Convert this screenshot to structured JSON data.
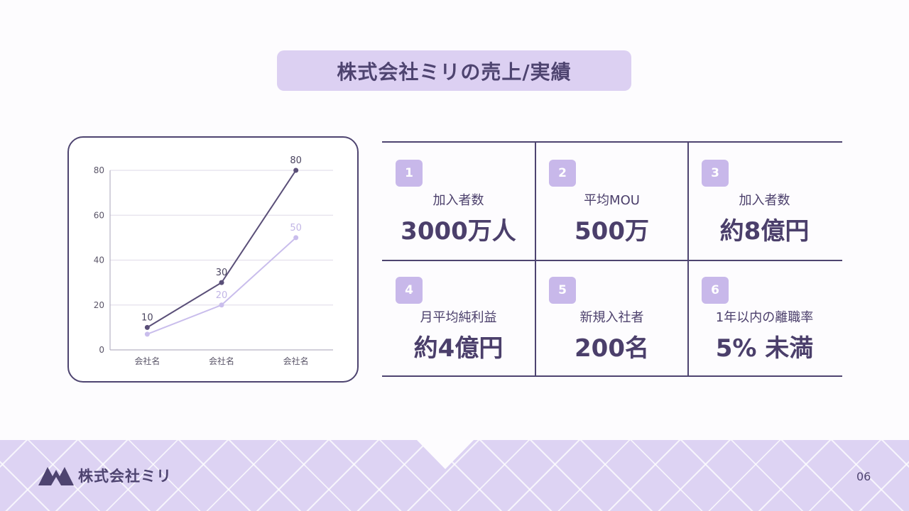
{
  "title": "株式会社ミリの売上/実績",
  "chart_data": {
    "type": "line",
    "categories": [
      "会社名",
      "会社名",
      "会社名"
    ],
    "series": [
      {
        "values": [
          10,
          30,
          80
        ],
        "color": "#5a4f78"
      },
      {
        "values": [
          7,
          20,
          50
        ],
        "color": "#c9bdec"
      }
    ],
    "data_labels": [
      [
        "10",
        "30",
        "80"
      ],
      [
        "",
        "20",
        "50"
      ]
    ],
    "yticks": [
      "0",
      "20",
      "40",
      "60",
      "80"
    ],
    "ylim": [
      0,
      80
    ],
    "grid": true,
    "xlabel": "",
    "ylabel": "",
    "chart_title": ""
  },
  "stats": [
    {
      "num": "1",
      "label": "加入者数",
      "value": "3000万人"
    },
    {
      "num": "2",
      "label": "平均MOU",
      "value": "500万"
    },
    {
      "num": "3",
      "label": "加入者数",
      "value": "約8億円"
    },
    {
      "num": "4",
      "label": "月平均純利益",
      "value": "約4億円"
    },
    {
      "num": "5",
      "label": "新規入社者",
      "value": "200名"
    },
    {
      "num": "6",
      "label": "1年以内の離職率",
      "value": "5% 未満"
    }
  ],
  "footer": {
    "brand": "株式会社ミリ",
    "page": "06",
    "logo_icon": "mountain-logo-icon"
  }
}
